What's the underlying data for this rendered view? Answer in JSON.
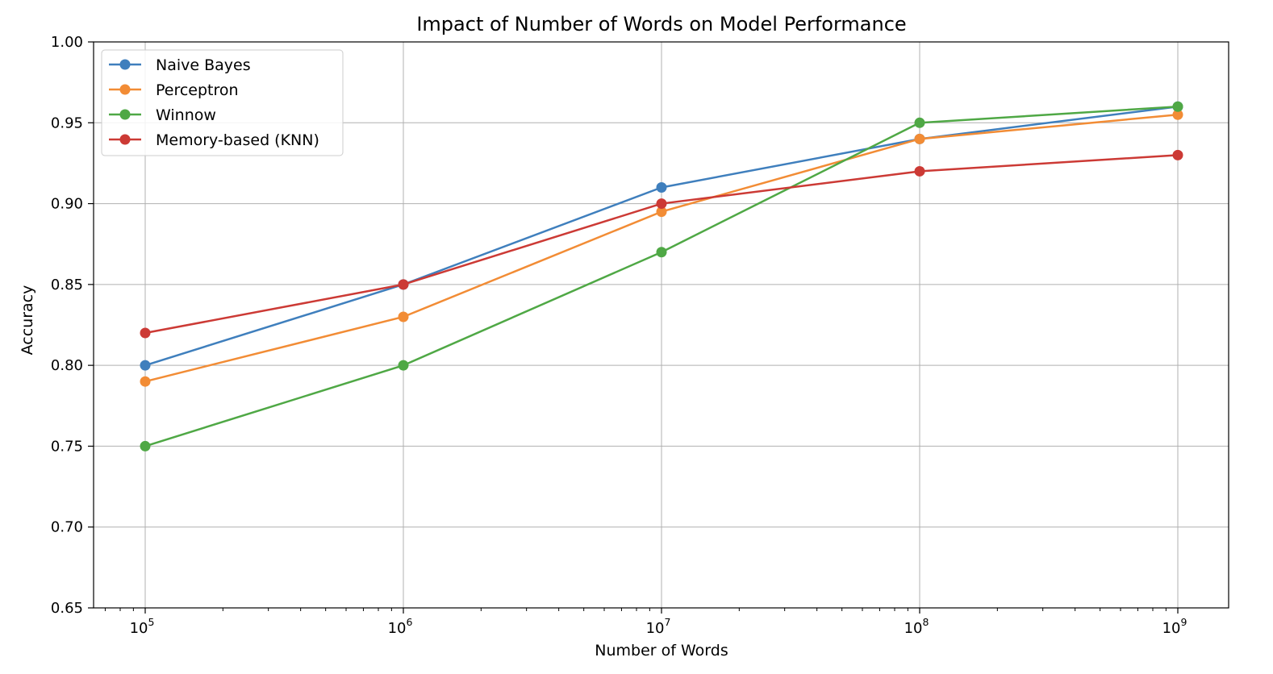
{
  "chart_data": {
    "type": "line",
    "title": "Impact of Number of Words on Model Performance",
    "xlabel": "Number of Words",
    "ylabel": "Accuracy",
    "x_scale": "log",
    "x": [
      100000,
      1000000,
      10000000,
      100000000,
      1000000000
    ],
    "x_tick_labels": [
      {
        "base": "10",
        "exponent": "5"
      },
      {
        "base": "10",
        "exponent": "6"
      },
      {
        "base": "10",
        "exponent": "7"
      },
      {
        "base": "10",
        "exponent": "8"
      },
      {
        "base": "10",
        "exponent": "9"
      }
    ],
    "y_ticks": [
      "0.65",
      "0.70",
      "0.75",
      "0.80",
      "0.85",
      "0.90",
      "0.95",
      "1.00"
    ],
    "ylim": [
      0.65,
      1.0
    ],
    "grid": true,
    "legend_position": "top-left",
    "series": [
      {
        "name": "Naive Bayes",
        "color": "#3f7fbd",
        "values": [
          0.8,
          0.85,
          0.91,
          0.94,
          0.96
        ]
      },
      {
        "name": "Perceptron",
        "color": "#f28c35",
        "values": [
          0.79,
          0.83,
          0.895,
          0.94,
          0.955
        ]
      },
      {
        "name": "Winnow",
        "color": "#4fa845",
        "values": [
          0.75,
          0.8,
          0.87,
          0.95,
          0.96
        ]
      },
      {
        "name": "Memory-based (KNN)",
        "color": "#cc3a35",
        "values": [
          0.82,
          0.85,
          0.9,
          0.92,
          0.93
        ]
      }
    ]
  }
}
